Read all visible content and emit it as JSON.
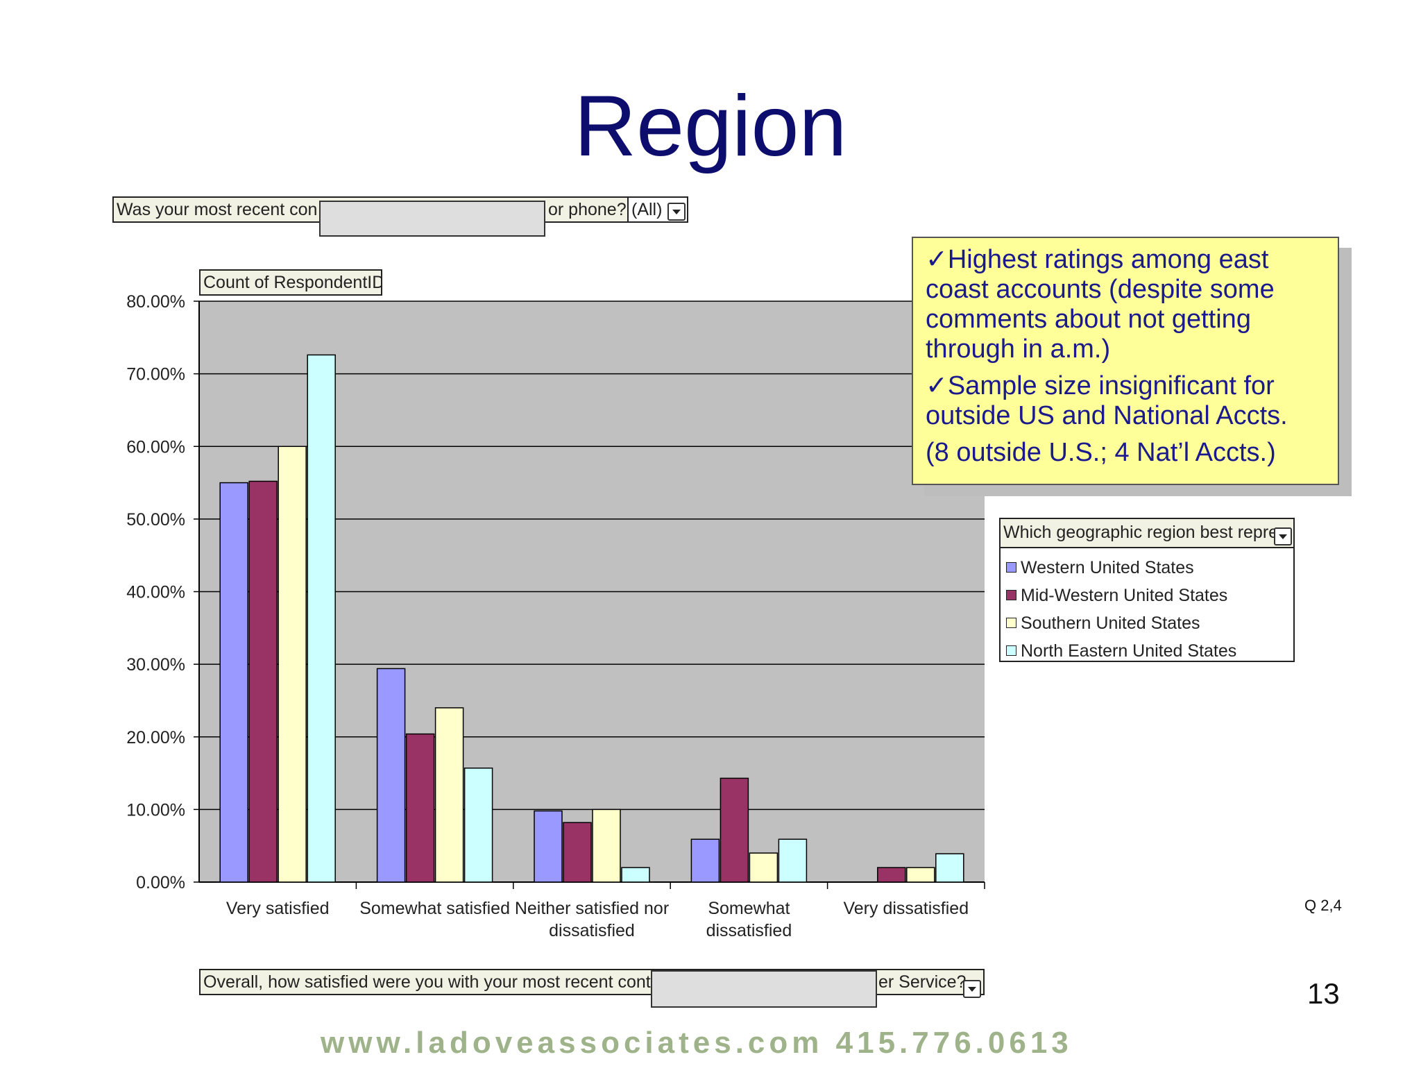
{
  "slide": {
    "title": "Region",
    "page_number": "13",
    "question_ref": "Q 2,4",
    "footer": "www.ladoveassociates.com  415.776.0613"
  },
  "page_filter": {
    "label_left": "Was your most recent con",
    "label_right": "or phone?",
    "value": "(All)"
  },
  "data_field": {
    "label": "Count of RespondentID"
  },
  "category_field": {
    "label_left": "Overall, how satisfied were you with your most recent conta",
    "label_right": "er Service?"
  },
  "callout": {
    "bullets": [
      "✓Highest ratings among east coast accounts (despite some comments about not getting through in a.m.)",
      "✓Sample size insignificant for outside US and National Accts.",
      "(8 outside U.S.; 4 Nat’l Accts.)"
    ]
  },
  "legend": {
    "header": "Which geographic region best repre",
    "items": [
      {
        "label": "Western United States",
        "color": "#9999ff"
      },
      {
        "label": "Mid-Western United States",
        "color": "#993366"
      },
      {
        "label": "Southern United States",
        "color": "#ffffcc"
      },
      {
        "label": "North Eastern United States",
        "color": "#ccffff"
      }
    ]
  },
  "chart_data": {
    "type": "bar",
    "categories": [
      [
        "Very satisfied"
      ],
      [
        "Somewhat satisfied"
      ],
      [
        "Neither satisfied nor",
        "dissatisfied"
      ],
      [
        "Somewhat",
        "dissatisfied"
      ],
      [
        "Very dissatisfied"
      ]
    ],
    "series": [
      {
        "name": "Western United States",
        "color": "#9999ff",
        "values": [
          55.0,
          29.4,
          9.8,
          5.9,
          0.0
        ]
      },
      {
        "name": "Mid-Western United States",
        "color": "#993366",
        "values": [
          55.2,
          20.4,
          8.2,
          14.3,
          2.0
        ]
      },
      {
        "name": "Southern United States",
        "color": "#ffffcc",
        "values": [
          60.0,
          24.0,
          10.0,
          4.0,
          2.0
        ]
      },
      {
        "name": "North Eastern United States",
        "color": "#ccffff",
        "values": [
          72.6,
          15.7,
          2.0,
          5.9,
          3.9
        ]
      }
    ],
    "y_ticks": [
      "0.00%",
      "10.00%",
      "20.00%",
      "30.00%",
      "40.00%",
      "50.00%",
      "60.00%",
      "70.00%",
      "80.00%"
    ],
    "ylim": [
      0,
      80
    ],
    "plot_background": "#c0c0c0",
    "grid": true
  }
}
